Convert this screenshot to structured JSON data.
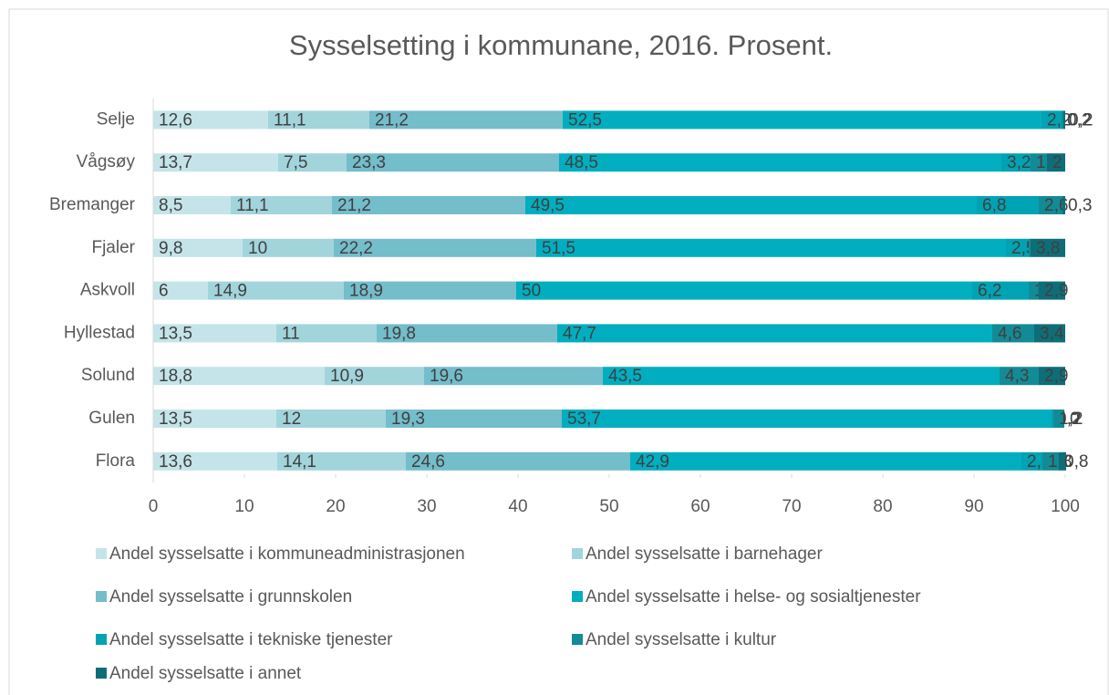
{
  "chart_data": {
    "type": "stacked_bar_horizontal",
    "title": "Sysselsetting i kommunane, 2016. Prosent.",
    "categories": [
      "Selje",
      "Vågsøy",
      "Bremanger",
      "Fjaler",
      "Askvoll",
      "Hyllestad",
      "Solund",
      "Gulen",
      "Flora"
    ],
    "series": [
      {
        "name": "Andel sysselsatte i kommuneadministrasjonen",
        "color": "#c4e4e9",
        "values": [
          12.6,
          13.7,
          8.5,
          9.8,
          6,
          13.5,
          18.8,
          13.5,
          13.6
        ],
        "value_labels": [
          "12,6",
          "13,7",
          "8,5",
          "9,8",
          "6",
          "13,5",
          "18,8",
          "13,5",
          "13,6"
        ]
      },
      {
        "name": "Andel sysselsatte i barnehager",
        "color": "#a2d4dc",
        "values": [
          11.1,
          7.5,
          11.1,
          10,
          14.9,
          11,
          10.9,
          12,
          14.1
        ],
        "value_labels": [
          "11,1",
          "7,5",
          "11,1",
          "10",
          "14,9",
          "11",
          "10,9",
          "12",
          "14,1"
        ]
      },
      {
        "name": "Andel sysselsatte i grunnskolen",
        "color": "#74bdcb",
        "values": [
          21.2,
          23.3,
          21.2,
          22.2,
          18.9,
          19.8,
          19.6,
          19.3,
          24.6
        ],
        "value_labels": [
          "21,2",
          "23,3",
          "21,2",
          "22,2",
          "18,9",
          "19,8",
          "19,6",
          "19,3",
          "24,6"
        ]
      },
      {
        "name": "Andel sysselsatte i helse- og sosialtjenester",
        "color": "#00aec0",
        "values": [
          52.5,
          48.5,
          49.5,
          51.5,
          50,
          47.7,
          43.5,
          53.7,
          42.9
        ],
        "value_labels": [
          "52,5",
          "48,5",
          "49,5",
          "51,5",
          "50",
          "47,7",
          "43,5",
          "53,7",
          "42,9"
        ]
      },
      {
        "name": "Andel sysselsatte i tekniske tjenester",
        "color": "#00a3b3",
        "values": [
          2.2,
          3.2,
          6.8,
          2.5,
          6.2,
          0,
          0,
          0.2,
          2.3
        ],
        "value_labels": [
          "2,2",
          "3,2",
          "6,8",
          "2,5",
          "6,2",
          "0",
          "0",
          "0,2",
          "2,3"
        ]
      },
      {
        "name": "Andel sysselsatte i kultur",
        "color": "#138b96",
        "values": [
          0.2,
          1.8,
          2.6,
          0.2,
          1.1,
          4.6,
          4.3,
          1.2,
          1.8
        ],
        "value_labels": [
          "0,2",
          "1,8",
          "2,6",
          "0,2",
          "1,1",
          "4,6",
          "4,3",
          "1,2",
          "1,8"
        ]
      },
      {
        "name": "Andel sysselsatte i annet",
        "color": "#0d6e78",
        "values": [
          0.2,
          2,
          0.3,
          3.8,
          2.9,
          3.4,
          2.9,
          0,
          0.8
        ],
        "value_labels": [
          "0,2",
          "2",
          "0,3",
          "3,8",
          "2,9",
          "3,4",
          "2,9",
          "0",
          "0,8"
        ]
      }
    ],
    "xlim": [
      0,
      100
    ],
    "xticks": [
      0,
      10,
      20,
      30,
      40,
      50,
      60,
      70,
      80,
      90,
      100
    ],
    "legend": "bottom"
  }
}
